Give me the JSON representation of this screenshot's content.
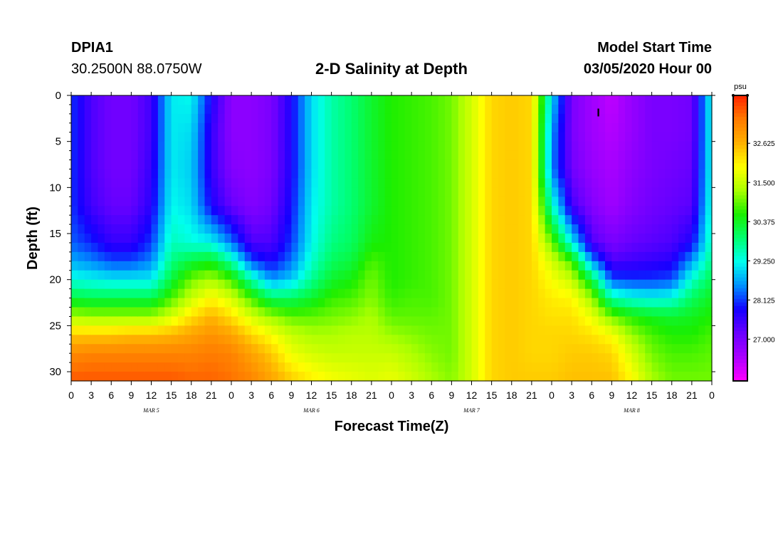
{
  "header": {
    "station_id": "DPIA1",
    "station_coords": "30.2500N 88.0750W",
    "title": "2-D Salinity at Depth",
    "start_label": "Model Start Time",
    "start_value": "03/05/2020 Hour 00"
  },
  "chart_data": {
    "type": "heatmap",
    "title": "2-D Salinity at Depth",
    "xlabel": "Forecast Time(Z)",
    "ylabel": "Depth (ft)",
    "x_tick_labels": [
      "0",
      "3",
      "6",
      "9",
      "12",
      "15",
      "18",
      "21",
      "0",
      "3",
      "6",
      "9",
      "12",
      "15",
      "18",
      "21",
      "0",
      "3",
      "6",
      "9",
      "12",
      "15",
      "18",
      "21",
      "0",
      "3",
      "6",
      "9",
      "12",
      "15",
      "18",
      "21",
      "0"
    ],
    "date_labels": [
      "MAR 5",
      "MAR 6",
      "MAR 7",
      "MAR 8"
    ],
    "xlim": [
      0,
      96
    ],
    "ylim": [
      0,
      31
    ],
    "y_ticks": [
      0,
      5,
      10,
      15,
      20,
      25,
      30
    ],
    "y_inverted": true,
    "colorbar": {
      "unit": "psu",
      "range": [
        25.8,
        34.0
      ],
      "tick_labels": [
        "32.625",
        "31.500",
        "30.375",
        "29.250",
        "28.125",
        "27.000"
      ],
      "tick_values": [
        32.625,
        31.5,
        30.375,
        29.25,
        28.125,
        27.0
      ],
      "colors": [
        "#ff00ff",
        "#aa00ff",
        "#6a00ff",
        "#1400ff",
        "#0090ff",
        "#00ffee",
        "#00ff70",
        "#1aee00",
        "#aaff00",
        "#ffff00",
        "#ffb000",
        "#ff7a00",
        "#ff2200"
      ]
    },
    "time_hours": [
      0,
      3,
      6,
      9,
      12,
      15,
      18,
      21,
      24,
      27,
      30,
      33,
      36,
      39,
      42,
      45,
      48,
      51,
      54,
      57,
      60,
      63,
      66,
      69,
      72,
      75,
      78,
      81,
      84,
      87,
      90,
      93,
      96
    ],
    "depths_ft": [
      0,
      4,
      8,
      12,
      16,
      18,
      20,
      22,
      24,
      26,
      28,
      31
    ],
    "salinity_profiles": [
      [
        28.1,
        28.1,
        28.1,
        28.1,
        28.3,
        28.7,
        29.3,
        30.2,
        31.3,
        32.4,
        33.1,
        33.6
      ],
      [
        27.4,
        27.4,
        27.4,
        27.5,
        28.0,
        28.5,
        29.2,
        30.1,
        31.2,
        32.4,
        33.2,
        33.6
      ],
      [
        27.1,
        27.1,
        27.1,
        27.2,
        27.6,
        28.2,
        29.1,
        30.1,
        31.2,
        32.4,
        33.2,
        33.6
      ],
      [
        27.1,
        27.1,
        27.1,
        27.2,
        27.6,
        28.2,
        29.1,
        30.1,
        31.2,
        32.5,
        33.2,
        33.6
      ],
      [
        27.5,
        27.5,
        27.6,
        27.7,
        28.1,
        28.5,
        29.1,
        30.1,
        31.2,
        32.5,
        33.2,
        33.6
      ],
      [
        29.1,
        29.1,
        29.1,
        29.2,
        29.5,
        29.8,
        30.2,
        30.8,
        31.6,
        32.6,
        33.2,
        33.6
      ],
      [
        29.2,
        29.0,
        28.9,
        29.0,
        29.3,
        30.2,
        31.0,
        31.5,
        32.2,
        32.8,
        33.2,
        33.5
      ],
      [
        27.8,
        27.6,
        27.6,
        27.8,
        29.2,
        30.4,
        31.3,
        32.0,
        32.6,
        33.0,
        33.3,
        33.5
      ],
      [
        26.8,
        26.8,
        26.9,
        27.2,
        28.4,
        29.6,
        30.8,
        31.6,
        32.2,
        32.8,
        33.2,
        33.4
      ],
      [
        26.8,
        26.8,
        26.8,
        26.9,
        27.4,
        28.2,
        29.6,
        30.8,
        31.6,
        32.3,
        32.8,
        33.2
      ],
      [
        27.0,
        27.0,
        27.0,
        27.1,
        27.4,
        27.8,
        28.6,
        30.0,
        31.2,
        31.9,
        32.4,
        32.8
      ],
      [
        27.8,
        27.8,
        27.8,
        27.9,
        28.1,
        28.4,
        28.9,
        30.0,
        30.9,
        31.5,
        31.8,
        32.4
      ],
      [
        29.0,
        29.0,
        29.0,
        29.1,
        29.2,
        29.4,
        29.7,
        30.3,
        30.9,
        31.3,
        31.6,
        32.1
      ],
      [
        29.6,
        29.6,
        29.6,
        29.6,
        29.8,
        30.0,
        30.3,
        30.7,
        31.0,
        31.3,
        31.5,
        31.9
      ],
      [
        29.9,
        29.9,
        29.9,
        29.9,
        30.0,
        30.2,
        30.5,
        30.8,
        31.1,
        31.4,
        31.5,
        31.8
      ],
      [
        30.3,
        30.3,
        30.3,
        30.3,
        30.5,
        30.8,
        31.0,
        31.1,
        31.3,
        31.4,
        31.5,
        31.7
      ],
      [
        30.6,
        30.6,
        30.6,
        30.6,
        30.6,
        30.6,
        30.6,
        30.7,
        30.9,
        31.2,
        31.5,
        31.8
      ],
      [
        30.7,
        30.7,
        30.7,
        30.7,
        30.7,
        30.7,
        30.7,
        30.8,
        30.9,
        31.1,
        31.3,
        31.6
      ],
      [
        30.8,
        30.8,
        30.8,
        30.8,
        30.8,
        30.8,
        30.8,
        30.8,
        30.9,
        31.0,
        31.1,
        31.3
      ],
      [
        31.0,
        31.0,
        31.0,
        31.0,
        31.0,
        31.0,
        31.0,
        31.0,
        31.0,
        31.0,
        31.0,
        31.1
      ],
      [
        31.6,
        31.6,
        31.6,
        31.6,
        31.6,
        31.6,
        31.6,
        31.6,
        31.6,
        31.6,
        31.6,
        31.6
      ],
      [
        32.3,
        32.3,
        32.3,
        32.3,
        32.3,
        32.3,
        32.3,
        32.3,
        32.3,
        32.3,
        32.3,
        32.3
      ],
      [
        32.4,
        32.4,
        32.4,
        32.4,
        32.4,
        32.4,
        32.4,
        32.4,
        32.4,
        32.4,
        32.4,
        32.4
      ],
      [
        32.3,
        32.3,
        32.3,
        32.3,
        32.3,
        32.3,
        32.3,
        32.3,
        32.3,
        32.3,
        32.3,
        32.4
      ],
      [
        29.0,
        28.6,
        28.5,
        29.5,
        31.0,
        31.6,
        31.9,
        32.1,
        32.2,
        32.3,
        32.3,
        32.4
      ],
      [
        27.0,
        27.0,
        27.1,
        27.5,
        29.2,
        30.8,
        31.5,
        32.0,
        32.2,
        32.3,
        32.4,
        32.5
      ],
      [
        26.6,
        26.6,
        26.7,
        26.9,
        27.4,
        28.6,
        30.2,
        31.2,
        31.8,
        32.2,
        32.4,
        32.5
      ],
      [
        26.3,
        26.4,
        26.5,
        26.6,
        27.0,
        27.4,
        28.2,
        29.6,
        31.0,
        31.9,
        32.3,
        32.5
      ],
      [
        26.7,
        26.7,
        26.8,
        26.9,
        27.2,
        27.5,
        28.1,
        29.3,
        30.6,
        31.2,
        31.6,
        32.0
      ],
      [
        27.0,
        27.0,
        27.0,
        27.1,
        27.3,
        27.6,
        28.1,
        29.2,
        30.4,
        30.8,
        31.0,
        31.3
      ],
      [
        27.0,
        27.0,
        27.1,
        27.2,
        27.4,
        27.7,
        28.2,
        29.3,
        30.3,
        30.6,
        30.8,
        31.0
      ],
      [
        27.1,
        27.1,
        27.2,
        27.3,
        27.8,
        28.6,
        29.4,
        30.0,
        30.4,
        30.6,
        30.8,
        31.0
      ],
      [
        29.3,
        29.3,
        29.3,
        29.4,
        29.6,
        29.8,
        30.1,
        30.4,
        30.6,
        30.8,
        30.9,
        31.0
      ]
    ],
    "marker": {
      "time_hour": 79,
      "depth_ft": 1.8,
      "label": "I"
    }
  }
}
